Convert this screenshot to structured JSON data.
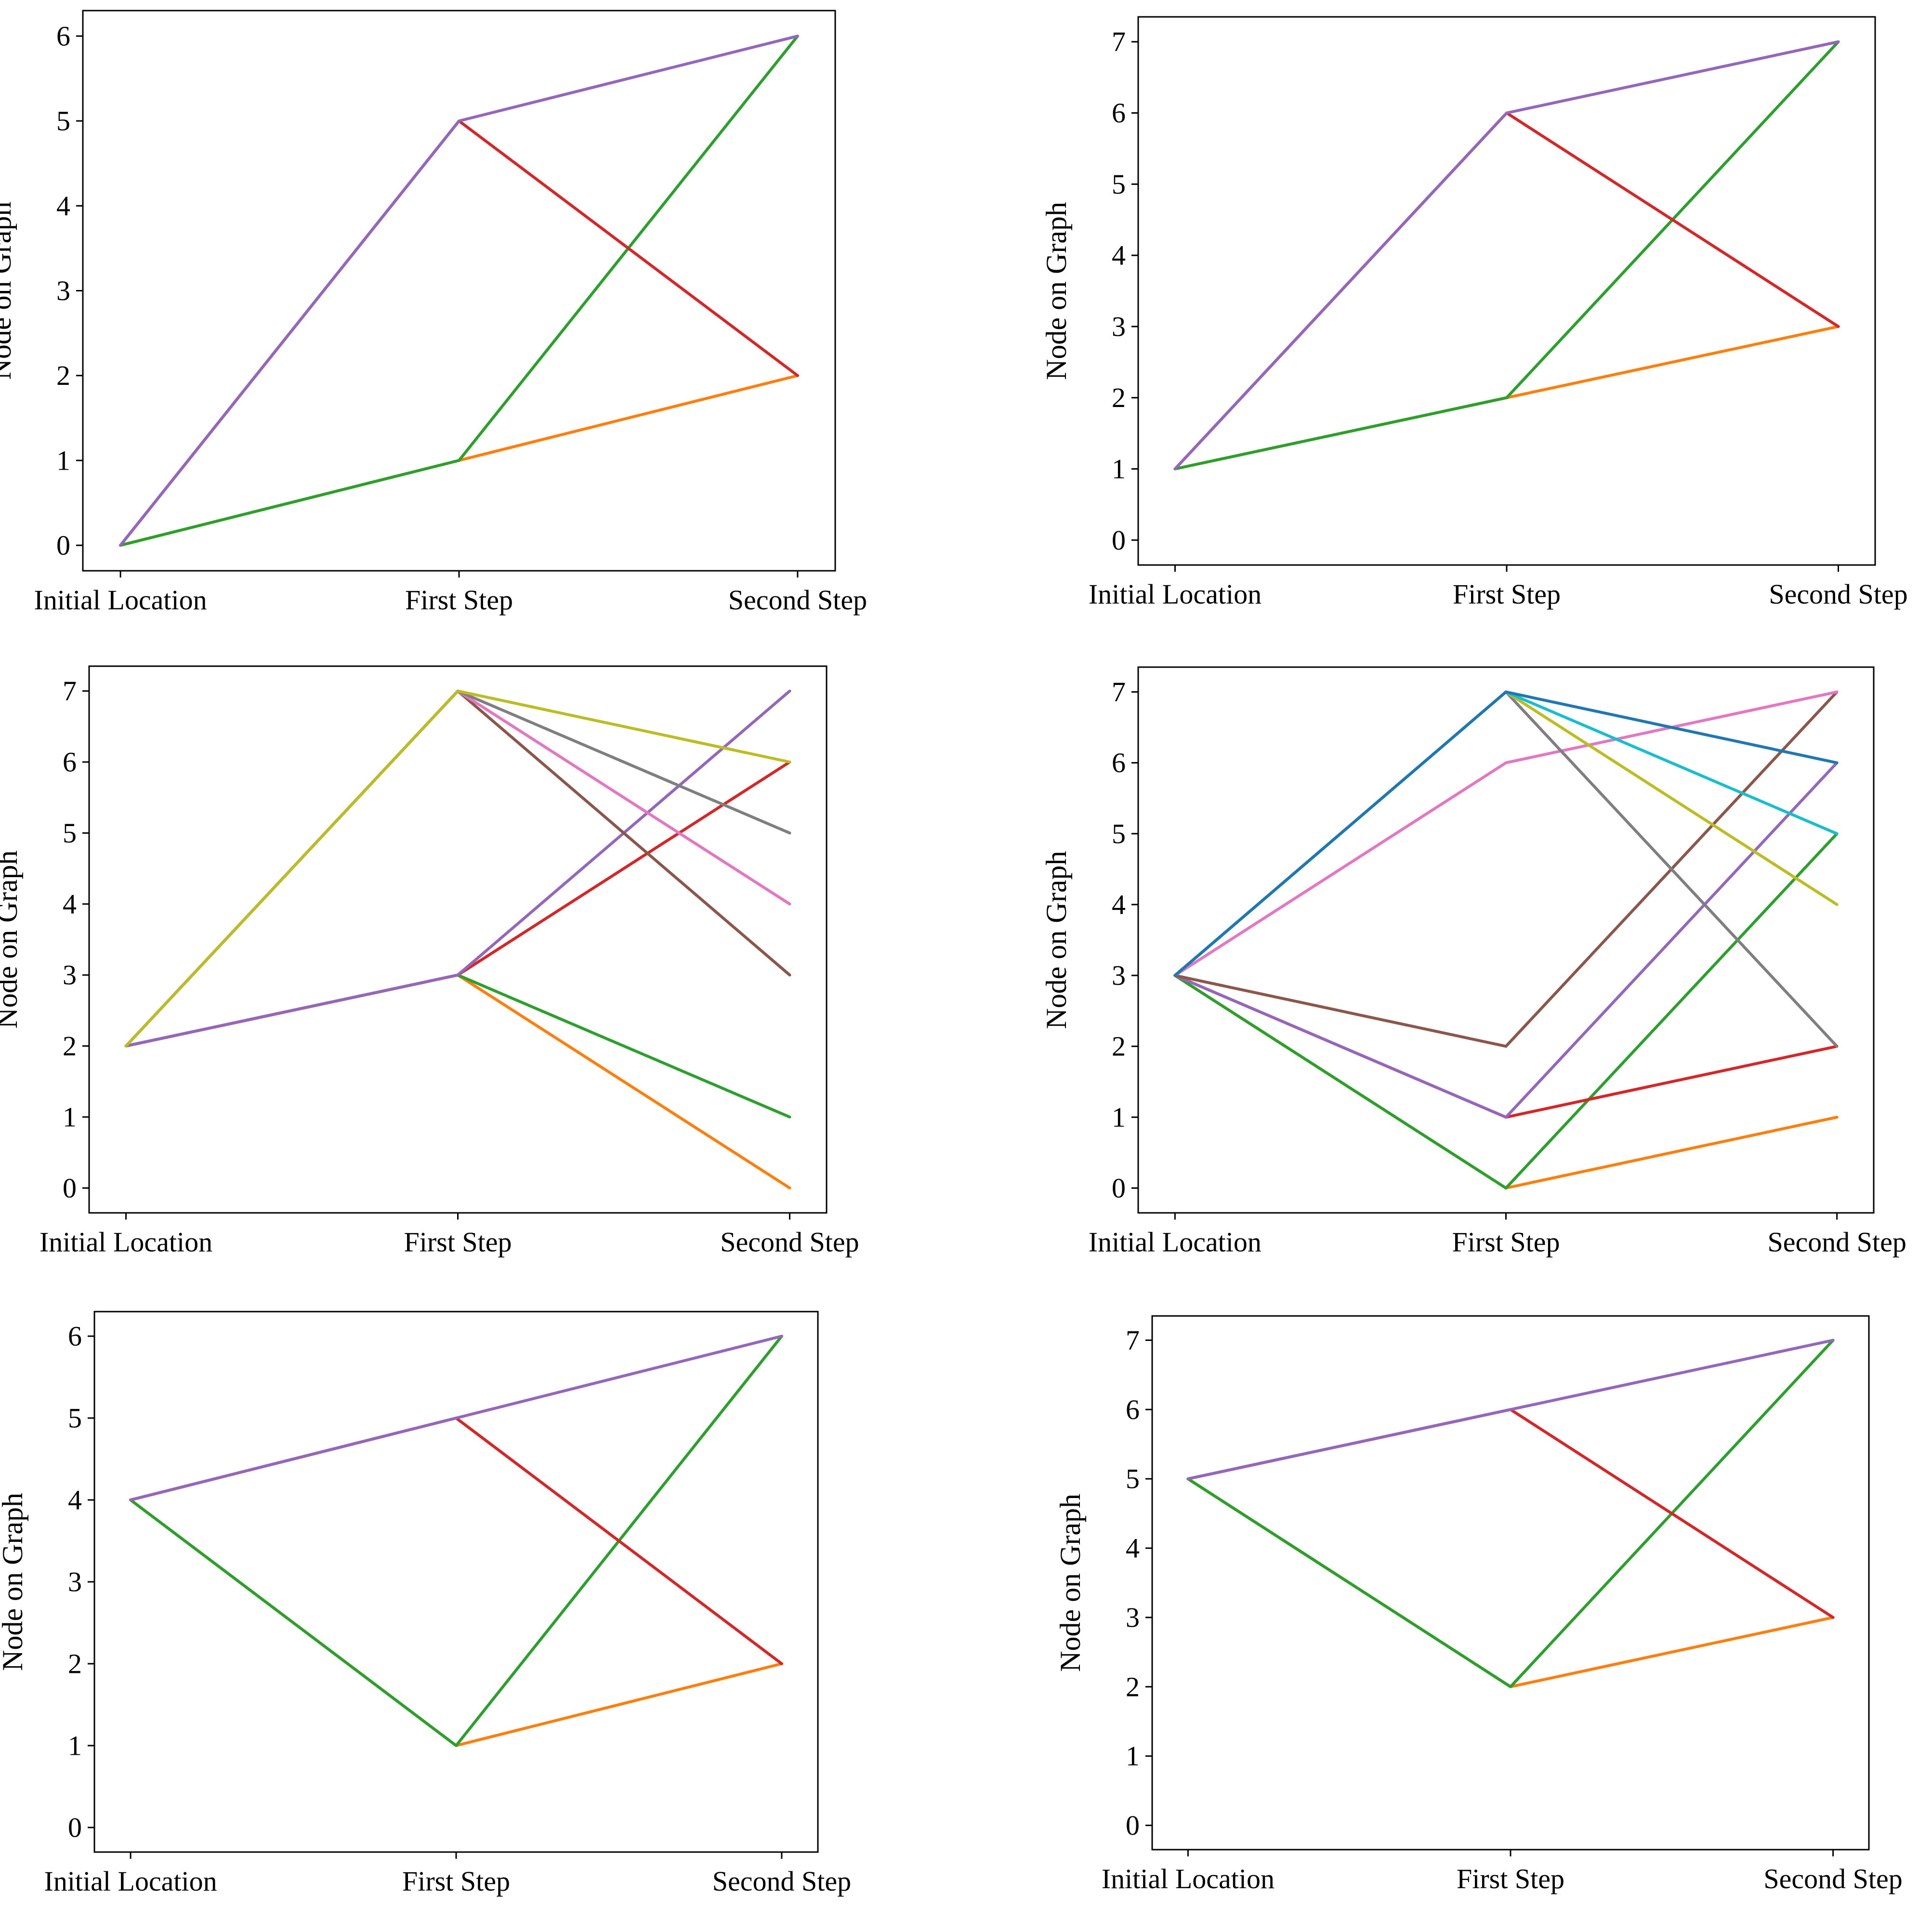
{
  "chart_data": [
    {
      "type": "line",
      "title": "",
      "xlabel": "",
      "ylabel": "Node on Graph",
      "categories": [
        "Initial Location",
        "First Step",
        "Second Step"
      ],
      "y_ticks": [
        "0",
        "1",
        "2",
        "3",
        "4",
        "5",
        "6"
      ],
      "ylim": [
        -0.3,
        6.3
      ],
      "grid": false,
      "series": [
        {
          "name": "orange",
          "color": "#ff7f0e",
          "values": [
            0,
            1,
            2
          ]
        },
        {
          "name": "green",
          "color": "#2ca02c",
          "values": [
            0,
            1,
            6
          ]
        },
        {
          "name": "red",
          "color": "#d62728",
          "values": [
            0,
            5,
            2
          ]
        },
        {
          "name": "purple",
          "color": "#9467bd",
          "values": [
            0,
            5,
            6
          ]
        }
      ]
    },
    {
      "type": "line",
      "title": "",
      "xlabel": "",
      "ylabel": "Node on Graph",
      "categories": [
        "Initial Location",
        "First Step",
        "Second Step"
      ],
      "y_ticks": [
        "0",
        "1",
        "2",
        "3",
        "4",
        "5",
        "6",
        "7"
      ],
      "ylim": [
        -0.35,
        7.35
      ],
      "grid": false,
      "series": [
        {
          "name": "orange",
          "color": "#ff7f0e",
          "values": [
            1,
            2,
            3
          ]
        },
        {
          "name": "green",
          "color": "#2ca02c",
          "values": [
            1,
            2,
            7
          ]
        },
        {
          "name": "red",
          "color": "#d62728",
          "values": [
            1,
            6,
            3
          ]
        },
        {
          "name": "purple",
          "color": "#9467bd",
          "values": [
            1,
            6,
            7
          ]
        }
      ]
    },
    {
      "type": "line",
      "title": "",
      "xlabel": "",
      "ylabel": "Node on Graph",
      "categories": [
        "Initial Location",
        "First Step",
        "Second Step"
      ],
      "y_ticks": [
        "0",
        "1",
        "2",
        "3",
        "4",
        "5",
        "6",
        "7"
      ],
      "ylim": [
        -0.35,
        7.35
      ],
      "grid": false,
      "series": [
        {
          "name": "orange",
          "color": "#ff7f0e",
          "values": [
            2,
            3,
            0
          ]
        },
        {
          "name": "green",
          "color": "#2ca02c",
          "values": [
            2,
            3,
            1
          ]
        },
        {
          "name": "red",
          "color": "#d62728",
          "values": [
            2,
            3,
            6
          ]
        },
        {
          "name": "purple",
          "color": "#9467bd",
          "values": [
            2,
            3,
            7
          ]
        },
        {
          "name": "brown",
          "color": "#8c564b",
          "values": [
            2,
            7,
            3
          ]
        },
        {
          "name": "pink",
          "color": "#e377c2",
          "values": [
            2,
            7,
            4
          ]
        },
        {
          "name": "gray",
          "color": "#7f7f7f",
          "values": [
            2,
            7,
            5
          ]
        },
        {
          "name": "olive",
          "color": "#bcbd22",
          "values": [
            2,
            7,
            6
          ]
        }
      ]
    },
    {
      "type": "line",
      "title": "",
      "xlabel": "",
      "ylabel": "Node on Graph",
      "categories": [
        "Initial Location",
        "First Step",
        "Second Step"
      ],
      "y_ticks": [
        "0",
        "1",
        "2",
        "3",
        "4",
        "5",
        "6",
        "7"
      ],
      "ylim": [
        -0.35,
        7.35
      ],
      "grid": false,
      "series": [
        {
          "name": "orange",
          "color": "#ff7f0e",
          "values": [
            3,
            0,
            1
          ]
        },
        {
          "name": "green",
          "color": "#2ca02c",
          "values": [
            3,
            0,
            5
          ]
        },
        {
          "name": "red",
          "color": "#d62728",
          "values": [
            3,
            1,
            2
          ]
        },
        {
          "name": "purple",
          "color": "#9467bd",
          "values": [
            3,
            1,
            6
          ]
        },
        {
          "name": "brown",
          "color": "#8c564b",
          "values": [
            3,
            2,
            7
          ]
        },
        {
          "name": "pink",
          "color": "#e377c2",
          "values": [
            3,
            6,
            7
          ]
        },
        {
          "name": "gray",
          "color": "#7f7f7f",
          "values": [
            3,
            7,
            2
          ]
        },
        {
          "name": "olive",
          "color": "#bcbd22",
          "values": [
            3,
            7,
            4
          ]
        },
        {
          "name": "cyan",
          "color": "#17becf",
          "values": [
            3,
            7,
            5
          ]
        },
        {
          "name": "blue",
          "color": "#1f77b4",
          "values": [
            3,
            7,
            6
          ]
        }
      ]
    },
    {
      "type": "line",
      "title": "",
      "xlabel": "",
      "ylabel": "Node on Graph",
      "categories": [
        "Initial Location",
        "First Step",
        "Second Step"
      ],
      "y_ticks": [
        "0",
        "1",
        "2",
        "3",
        "4",
        "5",
        "6"
      ],
      "ylim": [
        -0.3,
        6.3
      ],
      "grid": false,
      "series": [
        {
          "name": "orange",
          "color": "#ff7f0e",
          "values": [
            4,
            1,
            2
          ]
        },
        {
          "name": "green",
          "color": "#2ca02c",
          "values": [
            4,
            1,
            6
          ]
        },
        {
          "name": "red",
          "color": "#d62728",
          "values": [
            4,
            5,
            2
          ]
        },
        {
          "name": "purple",
          "color": "#9467bd",
          "values": [
            4,
            5,
            6
          ]
        }
      ]
    },
    {
      "type": "line",
      "title": "",
      "xlabel": "",
      "ylabel": "Node on Graph",
      "categories": [
        "Initial Location",
        "First Step",
        "Second Step"
      ],
      "y_ticks": [
        "0",
        "1",
        "2",
        "3",
        "4",
        "5",
        "6",
        "7"
      ],
      "ylim": [
        -0.35,
        7.35
      ],
      "grid": false,
      "series": [
        {
          "name": "orange",
          "color": "#ff7f0e",
          "values": [
            5,
            2,
            3
          ]
        },
        {
          "name": "green",
          "color": "#2ca02c",
          "values": [
            5,
            2,
            7
          ]
        },
        {
          "name": "red",
          "color": "#d62728",
          "values": [
            5,
            6,
            3
          ]
        },
        {
          "name": "purple",
          "color": "#9467bd",
          "values": [
            5,
            6,
            7
          ]
        }
      ]
    }
  ]
}
